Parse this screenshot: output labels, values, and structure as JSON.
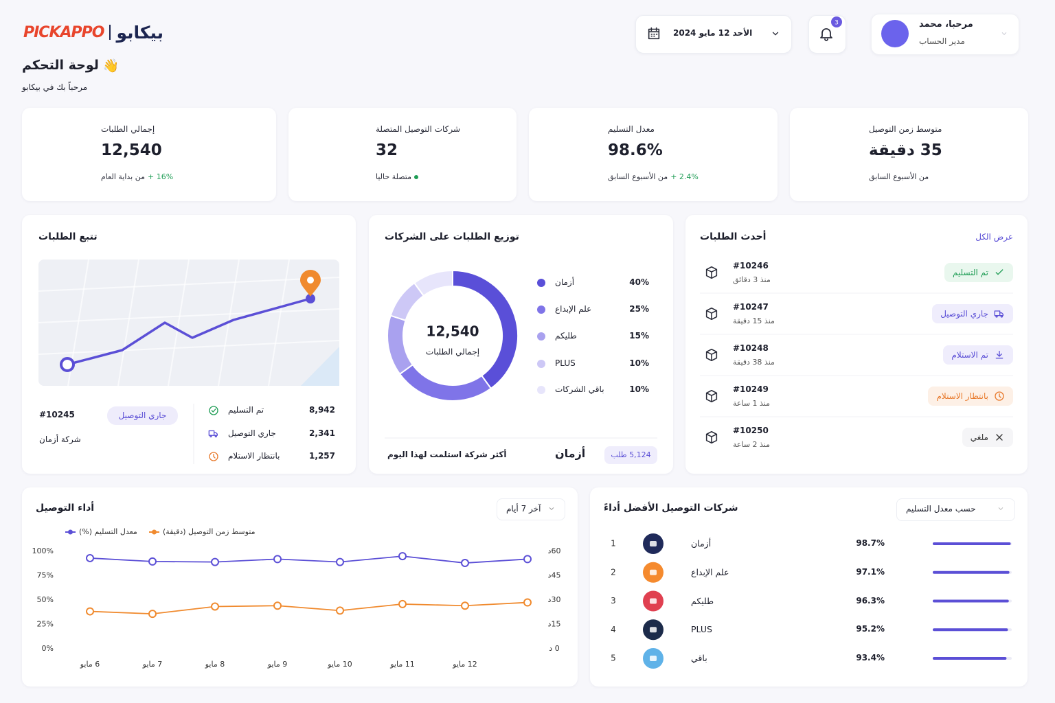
{
  "header": {
    "logo_latin": "PICKAPPO",
    "logo_arabic": "بيكابو",
    "title": "لوحة التحكم",
    "title_icon": "👋",
    "subtitle": "مرحباً بك في بيكابو",
    "date": "الأحد 12 مايو 2024",
    "notifications": "3",
    "user_greeting": "مرحبا، محمد",
    "user_role": "مدير الحساب"
  },
  "kpis": [
    {
      "title": "إجمالي الطلبات",
      "value": "12,540",
      "change": "+ 16%",
      "note": "من بداية العام",
      "color": "#6a5ae0"
    },
    {
      "title": "شركات التوصيل المتصلة",
      "value": "32",
      "note": "متصلة حاليا",
      "color": "#6a5ae0"
    },
    {
      "title": "معدل التسليم",
      "value": "98.6%",
      "change": "+ 2.4%",
      "note": "من الأسبوع السابق",
      "color": "#f08a2e"
    },
    {
      "title": "متوسط زمن التوصيل",
      "value": "35 دقيقة",
      "note": "من الأسبوع السابق",
      "color": "#6a5ae0"
    }
  ],
  "tracking": {
    "title": "تتبع الطلبات",
    "order_id": "#10245",
    "status": "جاري التوصيل",
    "company": "شركة أزمان",
    "stats": [
      {
        "label": "تم التسليم",
        "value": "8,942"
      },
      {
        "label": "جاري التوصيل",
        "value": "2,341"
      },
      {
        "label": "بانتظار الاستلام",
        "value": "1,257"
      }
    ]
  },
  "latest_orders": {
    "title": "أحدث الطلبات",
    "view_all": "عرض الكل",
    "orders": [
      {
        "id": "#10246",
        "time": "منذ 3 دقائق",
        "status": "تم التسليم"
      },
      {
        "id": "#10247",
        "time": "منذ 15 دقيقة",
        "status": "جاري التوصيل"
      },
      {
        "id": "#10248",
        "time": "منذ 38 دقيقة",
        "status": "تم الاستلام"
      },
      {
        "id": "#10249",
        "time": "منذ 1 ساعة",
        "status": "بانتظار الاستلام"
      },
      {
        "id": "#10250",
        "time": "منذ 2 ساعة",
        "status": "ملغي"
      }
    ]
  },
  "top_companies": {
    "title": "شركات التوصيل الأفضل أداءً",
    "sort": "حسب معدل التسليم",
    "rows": [
      {
        "rank": 1,
        "name": "أزمان",
        "rate": 98.7,
        "rate_label": "98.7%",
        "color": "#1f2a5a"
      },
      {
        "rank": 2,
        "name": "علم الإبداع",
        "rate": 97.1,
        "rate_label": "97.1%",
        "color": "#f58a2e"
      },
      {
        "rank": 3,
        "name": "طليكم",
        "rate": 96.3,
        "rate_label": "96.3%",
        "color": "#e04050"
      },
      {
        "rank": 4,
        "name": "PLUS",
        "rate": 95.2,
        "rate_label": "95.2%",
        "color": "#1c2b4a"
      },
      {
        "rank": 5,
        "name": "باقي",
        "rate": 93.4,
        "rate_label": "93.4%",
        "color": "#5fb2e8"
      }
    ]
  },
  "chart_data": [
    {
      "type": "pie",
      "title": "توزيع الطلبات على الشركات",
      "categories": [
        "أزمان",
        "علم الإبداع",
        "طليكم",
        "PLUS",
        "باقي الشركات"
      ],
      "values": [
        40,
        25,
        15,
        10,
        10
      ],
      "value_labels": [
        "40%",
        "25%",
        "15%",
        "10%",
        "10%"
      ],
      "colors": [
        "#5a4fd8",
        "#7f74e8",
        "#a9a1ef",
        "#cdc8f6",
        "#e7e5fb"
      ],
      "center_value": "12,540",
      "center_label": "إجمالي الطلبات",
      "top_company_caption": "أكثر شركة استلمت لهذا اليوم",
      "top_company": "أزمان",
      "top_company_orders": "5,124 طلب"
    },
    {
      "type": "line",
      "title": "أداء التوصيل",
      "period": "آخر 7 أيام",
      "categories": [
        "6 مايو",
        "7 مايو",
        "8 مايو",
        "9 مايو",
        "10 مايو",
        "11 مايو",
        "12 مايو",
        null
      ],
      "series": [
        {
          "name": "معدل التسليم (%)",
          "color": "#5b4fd6",
          "values": [
            93,
            89.5,
            89,
            92,
            89,
            95,
            88,
            92
          ]
        },
        {
          "name": "متوسط زمن التوصيل (دقيقة)",
          "color": "#f08a2e",
          "axis": "y2",
          "values": [
            23,
            21.5,
            26,
            26.5,
            23.5,
            27.5,
            26.5,
            28.5
          ]
        }
      ],
      "ylim": [
        0,
        100
      ],
      "yticks": [
        {
          "value": 0,
          "label": "0%"
        },
        {
          "value": 25,
          "label": "25%"
        },
        {
          "value": 50,
          "label": "50%"
        },
        {
          "value": 75,
          "label": "75%"
        },
        {
          "value": 100,
          "label": "100%"
        }
      ],
      "y2lim": [
        0,
        60
      ],
      "y2ticks": [
        {
          "value": 0,
          "label": "0 د"
        },
        {
          "value": 15,
          "label": "15د"
        },
        {
          "value": 30,
          "label": "30د"
        },
        {
          "value": 45,
          "label": "45د"
        },
        {
          "value": 60,
          "label": "60د"
        }
      ]
    }
  ]
}
